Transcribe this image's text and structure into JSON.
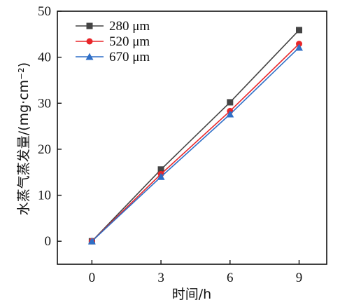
{
  "chart_data": {
    "type": "line",
    "xlabel": "时间/h",
    "ylabel": "水蒸气蒸发量/(mg·cm⁻²)",
    "x": [
      0,
      3,
      6,
      9
    ],
    "xlim": [
      -1.5,
      10.2
    ],
    "ylim": [
      -5,
      50
    ],
    "xticks": [
      0,
      3,
      6,
      9
    ],
    "yticks": [
      0,
      10,
      20,
      30,
      40,
      50
    ],
    "grid": false,
    "legend_position": "top-left",
    "series": [
      {
        "name": "280 μm",
        "values": [
          0,
          15.6,
          30.2,
          45.9
        ],
        "color": "#444444",
        "marker": "square"
      },
      {
        "name": "520 μm",
        "values": [
          0,
          14.6,
          28.3,
          42.9
        ],
        "color": "#e8262a",
        "marker": "circle"
      },
      {
        "name": "670 μm",
        "values": [
          0,
          14.0,
          27.6,
          42.1
        ],
        "color": "#2f6fc7",
        "marker": "triangle"
      }
    ]
  }
}
